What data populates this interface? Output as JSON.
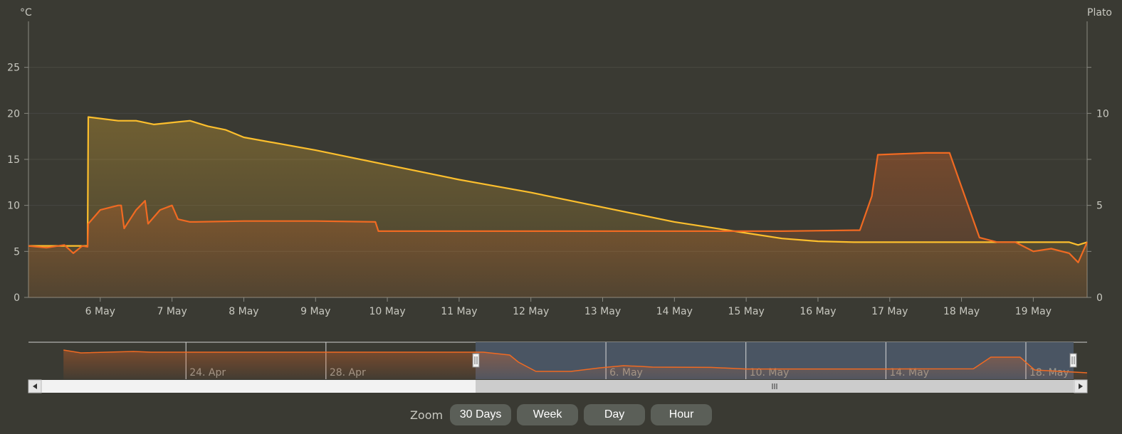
{
  "chart_data": {
    "type": "line",
    "left_axis_unit": "°C",
    "right_axis_unit": "Plato",
    "left_ticks": [
      0,
      5,
      10,
      15,
      20,
      25
    ],
    "right_ticks": [
      0,
      5,
      10
    ],
    "ylim_left": [
      0,
      30
    ],
    "ylim_right": [
      0,
      15
    ],
    "xlim": [
      "2023-05-05T00:00",
      "2023-05-19T18:00"
    ],
    "x_tick_labels": [
      "6 May",
      "7 May",
      "8 May",
      "9 May",
      "10 May",
      "11 May",
      "12 May",
      "13 May",
      "14 May",
      "15 May",
      "16 May",
      "17 May",
      "18 May",
      "19 May"
    ],
    "grid": true,
    "colors": {
      "background": "#3a3a33",
      "temperature": "#f06a22",
      "gravity": "#fdbf2d",
      "navigator_band": "#4a5563"
    },
    "series": [
      {
        "axis": "left",
        "color": "#f06a22",
        "x": [
          "05-05 00:00",
          "05-05 06:00",
          "05-05 12:00",
          "05-05 15:00",
          "05-05 18:00",
          "05-05 19:45",
          "05-05 20:00",
          "05-06 00:00",
          "05-06 06:00",
          "05-06 07:00",
          "05-06 08:00",
          "05-06 12:00",
          "05-06 15:00",
          "05-06 16:00",
          "05-06 20:00",
          "05-07 00:00",
          "05-07 02:00",
          "05-07 06:00",
          "05-07 08:00",
          "05-08 00:00",
          "05-09 00:00",
          "05-09 20:00",
          "05-09 21:00",
          "05-10 12:00",
          "05-11 12:00",
          "05-12 12:00",
          "05-13 12:00",
          "05-14 12:00",
          "05-15 12:00",
          "05-16 12:00",
          "05-16 14:00",
          "05-16 18:00",
          "05-16 20:00",
          "05-17 12:00",
          "05-17 20:00",
          "05-18 00:00",
          "05-18 06:00",
          "05-18 12:00",
          "05-18 18:00",
          "05-19 00:00",
          "05-19 06:00",
          "05-19 12:00",
          "05-19 15:00",
          "05-19 18:00"
        ],
        "y": [
          5.6,
          5.4,
          5.7,
          4.8,
          5.6,
          5.5,
          8.0,
          9.5,
          10.0,
          10.0,
          7.5,
          9.5,
          10.5,
          8.0,
          9.5,
          10.0,
          8.5,
          8.2,
          8.2,
          8.3,
          8.3,
          8.2,
          7.2,
          7.2,
          7.2,
          7.2,
          7.2,
          7.2,
          7.2,
          7.3,
          7.3,
          11.0,
          15.5,
          15.7,
          15.7,
          12.0,
          6.5,
          6.0,
          6.0,
          5.0,
          5.3,
          4.8,
          3.8,
          6.0
        ]
      },
      {
        "axis": "right",
        "color": "#fdbf2d",
        "x": [
          "05-05 00:00",
          "05-05 19:45",
          "05-05 20:00",
          "05-06 06:00",
          "05-06 12:00",
          "05-06 18:00",
          "05-07 06:00",
          "05-07 12:00",
          "05-07 18:00",
          "05-08 00:00",
          "05-09 00:00",
          "05-10 00:00",
          "05-11 00:00",
          "05-12 00:00",
          "05-13 00:00",
          "05-14 00:00",
          "05-14 12:00",
          "05-15 00:00",
          "05-15 12:00",
          "05-16 00:00",
          "05-16 12:00",
          "05-17 12:00",
          "05-18 12:00",
          "05-19 12:00",
          "05-19 15:00",
          "05-19 18:00"
        ],
        "y": [
          2.8,
          2.8,
          9.8,
          9.6,
          9.6,
          9.4,
          9.6,
          9.3,
          9.1,
          8.7,
          8.0,
          7.2,
          6.4,
          5.7,
          4.9,
          4.1,
          3.8,
          3.5,
          3.2,
          3.05,
          3.0,
          3.0,
          3.0,
          3.0,
          2.85,
          3.0
        ]
      }
    ],
    "navigator": {
      "tick_labels": [
        "24. Apr",
        "28. Apr",
        "6. May",
        "10. May",
        "14. May",
        "18. May"
      ],
      "x": [
        "04-20 12:00",
        "04-21 00:00",
        "04-22 12:00",
        "04-23 00:00",
        "04-25 00:00",
        "04-28 00:00",
        "05-01 00:00",
        "05-02 12:00",
        "05-03 06:00",
        "05-03 12:00",
        "05-04 00:00",
        "05-05 00:00",
        "05-05 20:00",
        "05-06 12:00",
        "05-07 00:00",
        "05-07 08:00",
        "05-09 00:00",
        "05-10 00:00",
        "05-12 00:00",
        "05-14 00:00",
        "05-16 12:00",
        "05-17 00:00",
        "05-17 20:00",
        "05-18 06:00",
        "05-19 00:00",
        "05-19 18:00"
      ],
      "y": [
        20.5,
        18.5,
        19.5,
        19.0,
        19.0,
        19.0,
        19.0,
        19.0,
        17.0,
        12.0,
        5.5,
        5.5,
        8.0,
        9.5,
        9.0,
        8.5,
        8.3,
        7.2,
        7.2,
        7.2,
        7.3,
        15.5,
        15.5,
        6.5,
        5.5,
        4.5
      ]
    }
  },
  "zoom": {
    "label": "Zoom",
    "buttons": [
      "30 Days",
      "Week",
      "Day",
      "Hour"
    ]
  },
  "scrollbar": {
    "grip_icon": "grip-lines-icon",
    "left_arrow_icon": "arrow-left-icon",
    "right_arrow_icon": "arrow-right-icon"
  }
}
